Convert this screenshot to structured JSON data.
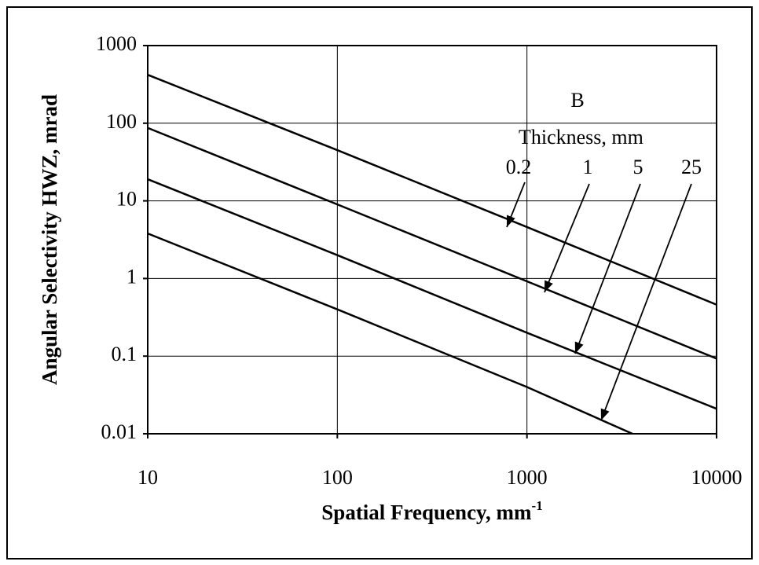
{
  "chart_data": {
    "type": "line",
    "xlabel": "Spatial Frequency, mm",
    "xlabel_superscript": "-1",
    "ylabel": "Angular Selectivity HWZ, mrad",
    "annotation": "B",
    "legend_title": "Thickness, mm",
    "xscale": "log",
    "yscale": "log",
    "grid": true,
    "xlim": [
      10,
      10000
    ],
    "xticks": [
      10,
      100,
      1000,
      10000
    ],
    "ylim": [
      0.01,
      1000
    ],
    "yticks": [
      0.01,
      0.1,
      1,
      10,
      100,
      1000
    ],
    "series": [
      {
        "name": "0.2",
        "color": "#000000",
        "x": [
          10,
          100,
          1000,
          10000
        ],
        "values": [
          420,
          45,
          4.6,
          0.46
        ]
      },
      {
        "name": "1",
        "color": "#000000",
        "x": [
          10,
          100,
          1000,
          10000
        ],
        "values": [
          87,
          9,
          0.92,
          0.093
        ]
      },
      {
        "name": "5",
        "color": "#000000",
        "x": [
          10,
          100,
          1000,
          10000
        ],
        "values": [
          19,
          2,
          0.2,
          0.021
        ]
      },
      {
        "name": "25",
        "color": "#000000",
        "x": [
          10,
          100,
          1000,
          3600
        ],
        "values": [
          3.8,
          0.4,
          0.04,
          0.01
        ]
      }
    ]
  }
}
